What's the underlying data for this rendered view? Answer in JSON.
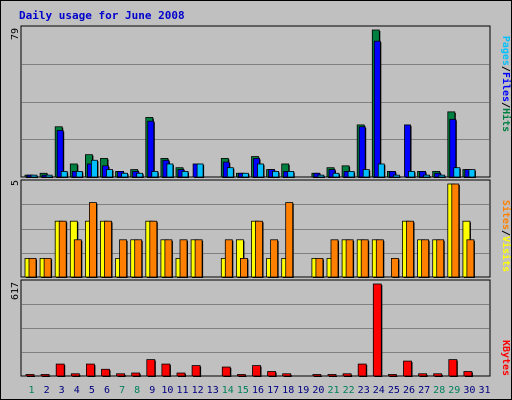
{
  "title": "Daily usage for June 2008",
  "colors": {
    "hits": "#008040",
    "files": "#0000ff",
    "pages": "#00c0ff",
    "visits": "#ffff00",
    "sites": "#ff8000",
    "kbytes": "#ff0000",
    "weekend_label": "#00805c",
    "weekday_label": "#000080",
    "grid": "#808080",
    "panel_bg": "#c0c0c0"
  },
  "chart_data": [
    {
      "type": "bar",
      "name": "hits-files-pages",
      "ylim": [
        0,
        79
      ],
      "y_max_label": "79",
      "legend": [
        "Pages",
        "Files",
        "Hits"
      ],
      "legend_seps": [
        "/",
        "/"
      ],
      "categories": [
        1,
        2,
        3,
        4,
        5,
        6,
        7,
        8,
        9,
        10,
        11,
        12,
        13,
        14,
        15,
        16,
        17,
        18,
        19,
        20,
        21,
        22,
        23,
        24,
        25,
        26,
        27,
        28,
        29,
        30,
        31
      ],
      "series": [
        {
          "name": "Hits",
          "values": [
            1,
            2,
            27,
            7,
            12,
            10,
            3,
            4,
            32,
            10,
            5,
            0,
            0,
            10,
            2,
            11,
            4,
            7,
            0,
            2,
            5,
            6,
            28,
            79,
            3,
            0,
            3,
            3,
            35,
            4,
            0
          ]
        },
        {
          "name": "Files",
          "values": [
            1,
            1,
            25,
            3,
            7,
            6,
            3,
            3,
            30,
            9,
            4,
            7,
            0,
            8,
            2,
            10,
            4,
            3,
            0,
            2,
            4,
            3,
            27,
            73,
            3,
            28,
            3,
            2,
            31,
            4,
            0
          ]
        },
        {
          "name": "Pages",
          "values": [
            1,
            1,
            3,
            3,
            9,
            4,
            2,
            2,
            3,
            7,
            3,
            7,
            0,
            5,
            2,
            7,
            3,
            3,
            0,
            1,
            2,
            3,
            4,
            7,
            1,
            3,
            1,
            1,
            5,
            4,
            0
          ]
        }
      ]
    },
    {
      "type": "bar",
      "name": "visits-sites",
      "ylim": [
        0,
        5
      ],
      "y_max_label": "5",
      "legend": [
        "Sites",
        "Visits"
      ],
      "legend_seps": [
        "/"
      ],
      "categories": [
        1,
        2,
        3,
        4,
        5,
        6,
        7,
        8,
        9,
        10,
        11,
        12,
        13,
        14,
        15,
        16,
        17,
        18,
        19,
        20,
        21,
        22,
        23,
        24,
        25,
        26,
        27,
        28,
        29,
        30,
        31
      ],
      "series": [
        {
          "name": "Visits",
          "values": [
            1,
            1,
            3,
            3,
            3,
            3,
            1,
            2,
            3,
            2,
            1,
            2,
            0,
            1,
            2,
            3,
            1,
            1,
            0,
            1,
            1,
            2,
            2,
            2,
            0,
            3,
            2,
            2,
            5,
            3,
            0
          ]
        },
        {
          "name": "Sites",
          "values": [
            1,
            1,
            3,
            2,
            4,
            3,
            2,
            2,
            3,
            2,
            2,
            2,
            0,
            2,
            1,
            3,
            2,
            4,
            0,
            1,
            2,
            2,
            2,
            2,
            1,
            3,
            2,
            2,
            5,
            2,
            0
          ]
        }
      ]
    },
    {
      "type": "bar",
      "name": "kbytes",
      "ylim": [
        0,
        617
      ],
      "y_max_label": "617",
      "legend": [
        "KBytes"
      ],
      "legend_seps": [],
      "categories": [
        1,
        2,
        3,
        4,
        5,
        6,
        7,
        8,
        9,
        10,
        11,
        12,
        13,
        14,
        15,
        16,
        17,
        18,
        19,
        20,
        21,
        22,
        23,
        24,
        25,
        26,
        27,
        28,
        29,
        30,
        31
      ],
      "series": [
        {
          "name": "KBytes",
          "values": [
            10,
            10,
            80,
            15,
            80,
            45,
            15,
            20,
            110,
            80,
            20,
            70,
            0,
            60,
            10,
            70,
            30,
            15,
            0,
            10,
            10,
            15,
            80,
            617,
            10,
            100,
            15,
            15,
            110,
            30,
            0
          ]
        }
      ]
    }
  ],
  "x_labels": [
    "1",
    "2",
    "3",
    "4",
    "5",
    "6",
    "7",
    "8",
    "9",
    "10",
    "11",
    "12",
    "13",
    "14",
    "15",
    "16",
    "17",
    "18",
    "19",
    "20",
    "21",
    "22",
    "23",
    "24",
    "25",
    "26",
    "27",
    "28",
    "29",
    "30",
    "31"
  ],
  "weekend_days": [
    1,
    7,
    8,
    14,
    15,
    21,
    22,
    28,
    29
  ]
}
